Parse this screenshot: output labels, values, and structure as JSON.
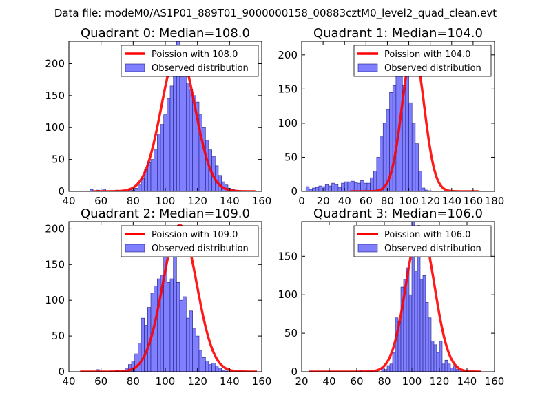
{
  "figure": {
    "suptitle": "Data file: modeM0/AS1P01_889T01_9000000158_00883cztM0_level2_quad_clean.evt"
  },
  "colors": {
    "hist_fill": "#7f7fff",
    "hist_edge": "#1f1f7f",
    "curve": "#ff0000"
  },
  "chart_data": [
    {
      "type": "histogram",
      "title": "Quadrant 0: Median=108.0",
      "xlim": [
        40,
        160
      ],
      "ylim": [
        0,
        235
      ],
      "xticks": [
        "40",
        "60",
        "80",
        "100",
        "120",
        "140",
        "160"
      ],
      "yticks": [
        "0",
        "50",
        "100",
        "150",
        "200"
      ],
      "xtick_values": [
        40,
        60,
        80,
        100,
        120,
        140,
        160
      ],
      "ytick_values": [
        0,
        50,
        100,
        150,
        200
      ],
      "bin_width": 2,
      "bin_start": 53,
      "counts": [
        3,
        0,
        2,
        0,
        4,
        0,
        1,
        0,
        2,
        1,
        2,
        0,
        3,
        2,
        5,
        10,
        20,
        35,
        45,
        50,
        65,
        90,
        105,
        120,
        145,
        165,
        200,
        235,
        180,
        190,
        170,
        160,
        150,
        140,
        120,
        100,
        80,
        65,
        55,
        40,
        25,
        15,
        10,
        5,
        3,
        2,
        1,
        0,
        1,
        0,
        0
      ],
      "curve_mu": 108.0,
      "curve_peak": 220,
      "curve_range": [
        55,
        156
      ],
      "legend": {
        "curve_label": "Poission with 108.0",
        "hist_label": "Observed distribution"
      }
    },
    {
      "type": "histogram",
      "title": "Quadrant 1: Median=104.0",
      "xlim": [
        0,
        180
      ],
      "ylim": [
        0,
        220
      ],
      "xticks": [
        "0",
        "20",
        "40",
        "60",
        "80",
        "100",
        "120",
        "140",
        "160",
        "180"
      ],
      "yticks": [
        "0",
        "50",
        "100",
        "150",
        "200"
      ],
      "xtick_values": [
        0,
        20,
        40,
        60,
        80,
        100,
        120,
        140,
        160,
        180
      ],
      "ytick_values": [
        0,
        50,
        100,
        150,
        200
      ],
      "bin_width": 3,
      "bin_start": 4,
      "counts": [
        7,
        3,
        5,
        6,
        8,
        7,
        10,
        8,
        12,
        10,
        6,
        12,
        14,
        14,
        15,
        13,
        12,
        16,
        12,
        12,
        20,
        30,
        50,
        80,
        100,
        120,
        145,
        155,
        190,
        180,
        155,
        200,
        130,
        100,
        70,
        30,
        5,
        2,
        1,
        0
      ],
      "curve_mu": 104.0,
      "curve_peak": 210,
      "curve_range": [
        45,
        165
      ],
      "legend": {
        "curve_label": "Poission with 104.0",
        "hist_label": "Observed distribution"
      }
    },
    {
      "type": "histogram",
      "title": "Quadrant 2: Median=109.0",
      "xlim": [
        40,
        160
      ],
      "ylim": [
        0,
        210
      ],
      "xticks": [
        "40",
        "60",
        "80",
        "100",
        "120",
        "140",
        "160"
      ],
      "yticks": [
        "0",
        "50",
        "100",
        "150",
        "200"
      ],
      "xtick_values": [
        40,
        60,
        80,
        100,
        120,
        140,
        160
      ],
      "ytick_values": [
        0,
        50,
        100,
        150,
        200
      ],
      "bin_width": 2,
      "bin_start": 57,
      "counts": [
        3,
        0,
        0,
        0,
        1,
        0,
        2,
        0,
        2,
        5,
        10,
        15,
        25,
        40,
        75,
        65,
        90,
        110,
        120,
        130,
        135,
        165,
        125,
        130,
        200,
        125,
        100,
        105,
        75,
        85,
        60,
        50,
        30,
        20,
        15,
        10,
        12,
        8,
        5,
        2,
        1
      ],
      "curve_mu": 109.0,
      "curve_peak": 205,
      "curve_range": [
        47,
        157
      ],
      "legend": {
        "curve_label": "Poission with 109.0",
        "hist_label": "Observed distribution"
      }
    },
    {
      "type": "histogram",
      "title": "Quadrant 3: Median=106.0",
      "xlim": [
        20,
        160
      ],
      "ylim": [
        0,
        195
      ],
      "xticks": [
        "20",
        "40",
        "60",
        "80",
        "100",
        "120",
        "140",
        "160"
      ],
      "yticks": [
        "0",
        "50",
        "100",
        "150"
      ],
      "xtick_values": [
        20,
        40,
        60,
        80,
        100,
        120,
        140,
        160
      ],
      "ytick_values": [
        0,
        50,
        100,
        150
      ],
      "bin_width": 2,
      "bin_start": 62,
      "counts": [
        2,
        0,
        0,
        0,
        0,
        0,
        0,
        0,
        5,
        3,
        8,
        10,
        25,
        70,
        65,
        110,
        120,
        135,
        100,
        195,
        130,
        190,
        120,
        125,
        90,
        70,
        40,
        35,
        25,
        40,
        10,
        15,
        10,
        5,
        8,
        3,
        2
      ],
      "curve_mu": 106.0,
      "curve_peak": 187,
      "curve_range": [
        25,
        150
      ],
      "legend": {
        "curve_label": "Poission with 106.0",
        "hist_label": "Observed distribution"
      }
    }
  ]
}
